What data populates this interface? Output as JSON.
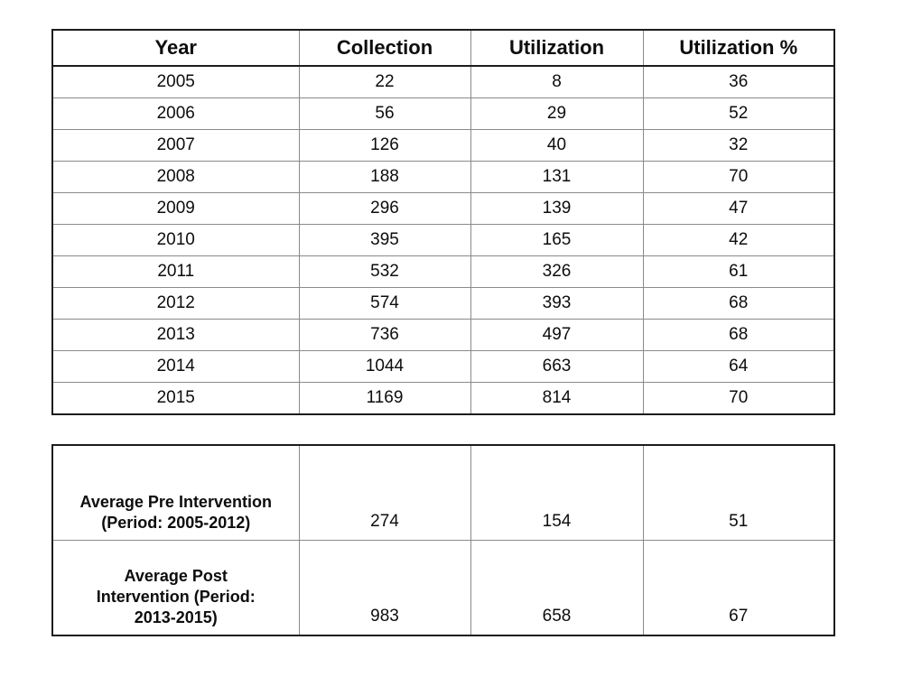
{
  "colors": {
    "background": "#ffffff",
    "text": "#0d0d0d",
    "outer_border": "#1c1c1c",
    "inner_gridline": "#8a8a8a"
  },
  "table1": {
    "headers": [
      "Year",
      "Collection",
      "Utilization",
      "Utilization %"
    ],
    "rows": [
      [
        "2005",
        "22",
        "8",
        "36"
      ],
      [
        "2006",
        "56",
        "29",
        "52"
      ],
      [
        "2007",
        "126",
        "40",
        "32"
      ],
      [
        "2008",
        "188",
        "131",
        "70"
      ],
      [
        "2009",
        "296",
        "139",
        "47"
      ],
      [
        "2010",
        "395",
        "165",
        "42"
      ],
      [
        "2011",
        "532",
        "326",
        "61"
      ],
      [
        "2012",
        "574",
        "393",
        "68"
      ],
      [
        "2013",
        "736",
        "497",
        "68"
      ],
      [
        "2014",
        "1044",
        "663",
        "64"
      ],
      [
        "2015",
        "1169",
        "814",
        "70"
      ]
    ]
  },
  "table2": {
    "rows": [
      {
        "label": "Average Pre Intervention\n(Period: 2005-2012)",
        "collection": "274",
        "utilization": "154",
        "utilization_pct": "51"
      },
      {
        "label": "Average Post\nIntervention (Period:\n2013-2015)",
        "collection": "983",
        "utilization": "658",
        "utilization_pct": "67"
      }
    ]
  }
}
